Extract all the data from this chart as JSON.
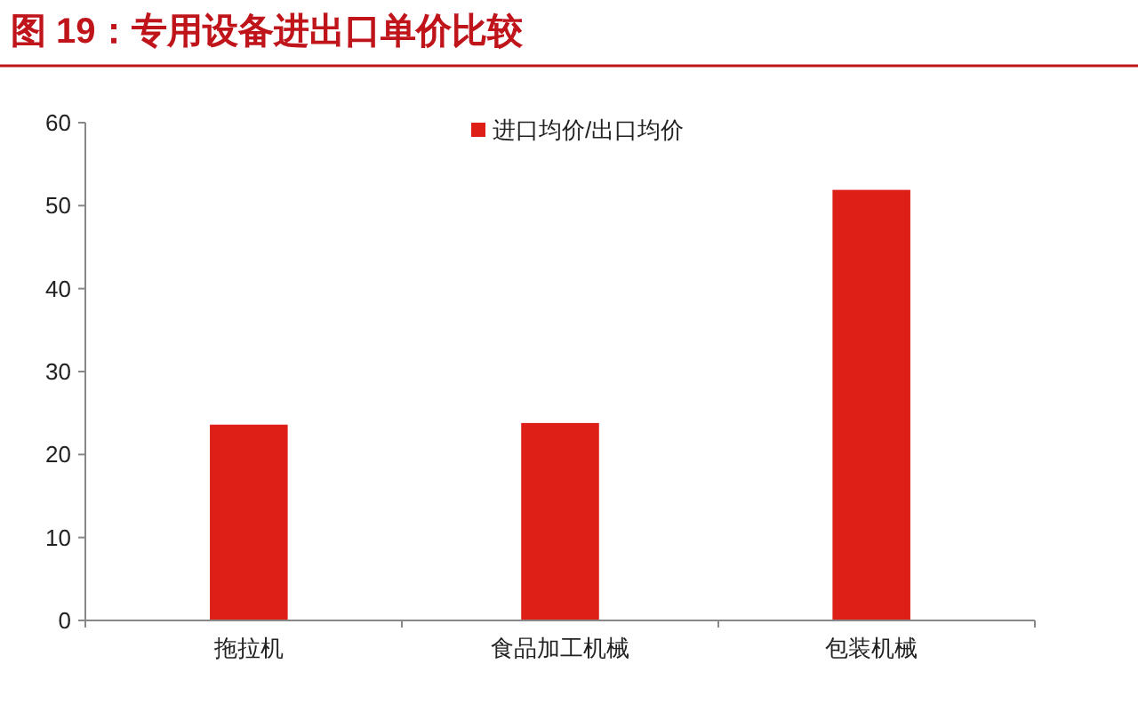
{
  "chart_data": {
    "type": "bar",
    "title": "图 19：专用设备进出口单价比较",
    "categories": [
      "拖拉机",
      "食品加工机械",
      "包装机械"
    ],
    "series": [
      {
        "name": "进口均价/出口均价",
        "color": "#dd1f17",
        "values": [
          23.6,
          23.8,
          51.9
        ]
      }
    ],
    "ylim": [
      0,
      60
    ],
    "yticks": [
      0,
      10,
      20,
      30,
      40,
      50,
      60
    ],
    "grid": false,
    "legend": "top"
  }
}
